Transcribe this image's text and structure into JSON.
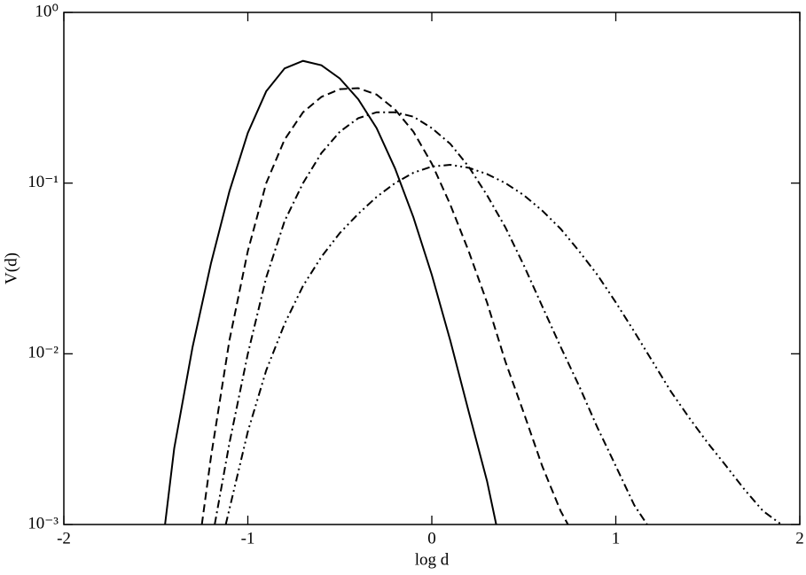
{
  "chart_data": {
    "type": "line",
    "log_y": true,
    "xlabel": "log d",
    "ylabel": "V(d)",
    "xlim": [
      -2,
      2
    ],
    "xticks": [
      -2,
      -1,
      0,
      1,
      2
    ],
    "ylim": [
      0.001,
      1
    ],
    "yticks": [
      {
        "value": 0.001,
        "label": "10⁻³"
      },
      {
        "value": 0.01,
        "label": "10⁻²"
      },
      {
        "value": 0.1,
        "label": "10⁻¹"
      },
      {
        "value": 1,
        "label": "10⁰"
      }
    ],
    "series": [
      {
        "color": "#000000",
        "dash": "solid",
        "x": [
          -1.45,
          -1.4,
          -1.3,
          -1.2,
          -1.1,
          -1.0,
          -0.9,
          -0.8,
          -0.7,
          -0.6,
          -0.5,
          -0.4,
          -0.3,
          -0.2,
          -0.1,
          0.0,
          0.1,
          0.2,
          0.3,
          0.35
        ],
        "values": [
          0.001,
          0.0028,
          0.011,
          0.034,
          0.0895,
          0.197,
          0.345,
          0.47,
          0.52,
          0.49,
          0.41,
          0.31,
          0.21,
          0.122,
          0.063,
          0.029,
          0.012,
          0.0046,
          0.0018,
          0.001
        ]
      },
      {
        "color": "#000000",
        "dash": "dash",
        "x": [
          -1.25,
          -1.2,
          -1.1,
          -1.0,
          -0.9,
          -0.8,
          -0.7,
          -0.6,
          -0.5,
          -0.4,
          -0.3,
          -0.2,
          -0.1,
          0.0,
          0.1,
          0.2,
          0.3,
          0.4,
          0.5,
          0.6,
          0.7,
          0.74
        ],
        "values": [
          0.001,
          0.0025,
          0.012,
          0.04,
          0.1,
          0.18,
          0.26,
          0.32,
          0.355,
          0.36,
          0.33,
          0.27,
          0.2,
          0.13,
          0.075,
          0.04,
          0.02,
          0.009,
          0.0045,
          0.0022,
          0.0012,
          0.001
        ]
      },
      {
        "color": "#000000",
        "dash": "dashdot",
        "x": [
          -1.18,
          -1.1,
          -1.0,
          -0.9,
          -0.8,
          -0.7,
          -0.6,
          -0.5,
          -0.4,
          -0.3,
          -0.2,
          -0.1,
          0.0,
          0.1,
          0.2,
          0.3,
          0.4,
          0.5,
          0.6,
          0.7,
          0.8,
          0.9,
          1.0,
          1.1,
          1.17
        ],
        "values": [
          0.001,
          0.003,
          0.01,
          0.028,
          0.06,
          0.1,
          0.15,
          0.2,
          0.24,
          0.26,
          0.26,
          0.245,
          0.21,
          0.17,
          0.125,
          0.085,
          0.055,
          0.033,
          0.019,
          0.011,
          0.0065,
          0.0037,
          0.0022,
          0.0013,
          0.001
        ]
      },
      {
        "color": "#000000",
        "dash": "dashdotdot",
        "x": [
          -1.12,
          -1.0,
          -0.9,
          -0.8,
          -0.7,
          -0.6,
          -0.5,
          -0.4,
          -0.3,
          -0.2,
          -0.1,
          0.0,
          0.1,
          0.2,
          0.3,
          0.4,
          0.5,
          0.6,
          0.7,
          0.8,
          0.9,
          1.0,
          1.1,
          1.2,
          1.3,
          1.4,
          1.5,
          1.6,
          1.7,
          1.8,
          1.9
        ],
        "values": [
          0.001,
          0.0035,
          0.008,
          0.015,
          0.025,
          0.037,
          0.051,
          0.066,
          0.083,
          0.1,
          0.115,
          0.125,
          0.128,
          0.123,
          0.113,
          0.1,
          0.085,
          0.069,
          0.054,
          0.04,
          0.029,
          0.02,
          0.0135,
          0.009,
          0.006,
          0.0042,
          0.003,
          0.0022,
          0.0016,
          0.0012,
          0.001
        ]
      }
    ]
  }
}
